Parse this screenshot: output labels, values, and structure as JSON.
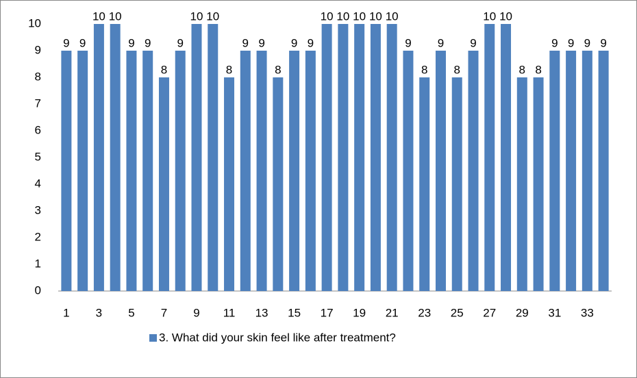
{
  "chart_data": {
    "type": "bar",
    "categories": [
      "1",
      null,
      "3",
      null,
      "5",
      null,
      "7",
      null,
      "9",
      null,
      "11",
      null,
      "13",
      null,
      "15",
      null,
      "17",
      null,
      "19",
      null,
      "21",
      null,
      "23",
      null,
      "25",
      null,
      "27",
      null,
      "29",
      null,
      "31",
      null,
      "33",
      null
    ],
    "series": [
      {
        "name": "3. What did your skin feel like after treatment?",
        "color": "#4f81bd",
        "values": [
          9,
          9,
          10,
          10,
          9,
          9,
          8,
          9,
          10,
          10,
          8,
          9,
          9,
          8,
          9,
          9,
          10,
          10,
          10,
          10,
          10,
          9,
          8,
          9,
          8,
          9,
          10,
          10,
          8,
          8,
          9,
          9,
          9,
          9
        ]
      }
    ],
    "ylim": [
      0,
      10
    ],
    "yticks": [
      0,
      1,
      2,
      3,
      4,
      5,
      6,
      7,
      8,
      9,
      10
    ],
    "grid": false,
    "legend": "bottom"
  }
}
